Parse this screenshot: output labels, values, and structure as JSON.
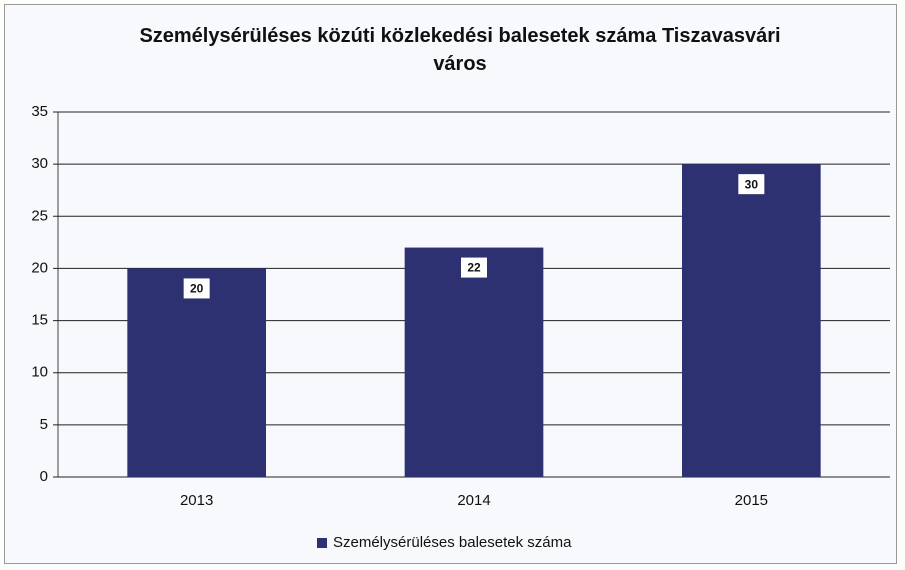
{
  "chart_data": {
    "type": "bar",
    "title": "Személysérüléses közúti közlekedési balesetek száma Tiszavasvári város",
    "categories": [
      "2013",
      "2014",
      "2015"
    ],
    "series": [
      {
        "name": "Személysérüléses balesetek száma",
        "color": "#2e3171",
        "values": [
          20,
          22,
          30
        ]
      }
    ],
    "ylim": [
      0,
      35
    ],
    "yticks": [
      0,
      5,
      10,
      15,
      20,
      25,
      30,
      35
    ],
    "grid": true,
    "legend": "bottom"
  }
}
